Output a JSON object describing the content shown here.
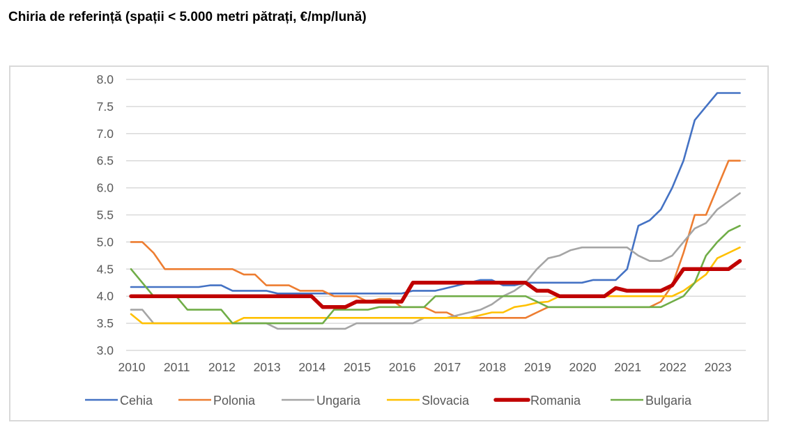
{
  "chart_data": {
    "type": "line",
    "title": "Chiria de referință (spații < 5.000 metri pătrați, €/mp/lună)",
    "xlabel": "",
    "ylabel": "",
    "xlim": [
      2010,
      2023.75
    ],
    "ylim": [
      3.0,
      8.0
    ],
    "grid": true,
    "legend_position": "bottom",
    "x_tick_labels": [
      "2010",
      "2011",
      "2012",
      "2013",
      "2014",
      "2015",
      "2016",
      "2017",
      "2018",
      "2019",
      "2020",
      "2021",
      "2022",
      "2023"
    ],
    "y_tick_labels": [
      "8.0",
      "7.5",
      "7.0",
      "6.5",
      "6.0",
      "5.5",
      "5.0",
      "4.5",
      "4.0",
      "3.5",
      "3.0"
    ],
    "x_start": 2010,
    "x_step": 0.25,
    "series": [
      {
        "name": "Cehia",
        "color": "#4472C4",
        "values": [
          4.17,
          4.17,
          4.17,
          4.17,
          4.17,
          4.17,
          4.17,
          4.2,
          4.2,
          4.1,
          4.1,
          4.1,
          4.1,
          4.05,
          4.05,
          4.05,
          4.05,
          4.05,
          4.05,
          4.05,
          4.05,
          4.05,
          4.05,
          4.05,
          4.05,
          4.1,
          4.1,
          4.1,
          4.15,
          4.2,
          4.25,
          4.3,
          4.3,
          4.2,
          4.2,
          4.25,
          4.25,
          4.25,
          4.25,
          4.25,
          4.25,
          4.3,
          4.3,
          4.3,
          4.5,
          5.3,
          5.4,
          5.6,
          6.0,
          6.5,
          7.25,
          7.5,
          7.75,
          7.75,
          7.75
        ]
      },
      {
        "name": "Polonia",
        "color": "#ED7D31",
        "values": [
          5.0,
          5.0,
          4.8,
          4.5,
          4.5,
          4.5,
          4.5,
          4.5,
          4.5,
          4.5,
          4.4,
          4.4,
          4.2,
          4.2,
          4.2,
          4.1,
          4.1,
          4.1,
          4.0,
          4.0,
          4.0,
          3.9,
          3.95,
          3.95,
          3.8,
          3.8,
          3.8,
          3.7,
          3.7,
          3.6,
          3.6,
          3.6,
          3.6,
          3.6,
          3.6,
          3.6,
          3.7,
          3.8,
          3.8,
          3.8,
          3.8,
          3.8,
          3.8,
          3.8,
          3.8,
          3.8,
          3.8,
          3.9,
          4.2,
          4.8,
          5.5,
          5.5,
          6.0,
          6.5,
          6.5
        ]
      },
      {
        "name": "Ungaria",
        "color": "#A5A5A5",
        "values": [
          3.75,
          3.75,
          3.5,
          3.5,
          3.5,
          3.5,
          3.5,
          3.5,
          3.5,
          3.5,
          3.5,
          3.5,
          3.5,
          3.4,
          3.4,
          3.4,
          3.4,
          3.4,
          3.4,
          3.4,
          3.5,
          3.5,
          3.5,
          3.5,
          3.5,
          3.5,
          3.6,
          3.6,
          3.6,
          3.65,
          3.7,
          3.75,
          3.85,
          4.0,
          4.1,
          4.25,
          4.5,
          4.7,
          4.75,
          4.85,
          4.9,
          4.9,
          4.9,
          4.9,
          4.9,
          4.75,
          4.65,
          4.65,
          4.75,
          5.0,
          5.25,
          5.35,
          5.6,
          5.75,
          5.9
        ]
      },
      {
        "name": "Slovacia",
        "color": "#FFC000",
        "values": [
          3.67,
          3.5,
          3.5,
          3.5,
          3.5,
          3.5,
          3.5,
          3.5,
          3.5,
          3.5,
          3.6,
          3.6,
          3.6,
          3.6,
          3.6,
          3.6,
          3.6,
          3.6,
          3.6,
          3.6,
          3.6,
          3.6,
          3.6,
          3.6,
          3.6,
          3.6,
          3.6,
          3.6,
          3.6,
          3.6,
          3.6,
          3.65,
          3.7,
          3.7,
          3.8,
          3.83,
          3.88,
          3.9,
          4.0,
          4.0,
          4.0,
          4.0,
          4.0,
          4.0,
          4.0,
          4.0,
          4.0,
          4.0,
          4.0,
          4.1,
          4.25,
          4.4,
          4.7,
          4.8,
          4.9
        ]
      },
      {
        "name": "Romania",
        "color": "#C00000",
        "values": [
          4.0,
          4.0,
          4.0,
          4.0,
          4.0,
          4.0,
          4.0,
          4.0,
          4.0,
          4.0,
          4.0,
          4.0,
          4.0,
          4.0,
          4.0,
          4.0,
          4.0,
          3.8,
          3.8,
          3.8,
          3.9,
          3.9,
          3.9,
          3.9,
          3.9,
          4.25,
          4.25,
          4.25,
          4.25,
          4.25,
          4.25,
          4.25,
          4.25,
          4.25,
          4.25,
          4.25,
          4.1,
          4.1,
          4.0,
          4.0,
          4.0,
          4.0,
          4.0,
          4.15,
          4.1,
          4.1,
          4.1,
          4.1,
          4.2,
          4.5,
          4.5,
          4.5,
          4.5,
          4.5,
          4.65
        ]
      },
      {
        "name": "Bulgaria",
        "color": "#70AD47",
        "values": [
          4.5,
          4.25,
          4.0,
          4.0,
          4.0,
          3.75,
          3.75,
          3.75,
          3.75,
          3.5,
          3.5,
          3.5,
          3.5,
          3.5,
          3.5,
          3.5,
          3.5,
          3.5,
          3.75,
          3.75,
          3.75,
          3.75,
          3.8,
          3.8,
          3.8,
          3.8,
          3.8,
          4.0,
          4.0,
          4.0,
          4.0,
          4.0,
          4.0,
          4.0,
          4.0,
          4.0,
          3.9,
          3.8,
          3.8,
          3.8,
          3.8,
          3.8,
          3.8,
          3.8,
          3.8,
          3.8,
          3.8,
          3.8,
          3.9,
          4.0,
          4.25,
          4.75,
          5.0,
          5.2,
          5.3
        ]
      }
    ]
  }
}
